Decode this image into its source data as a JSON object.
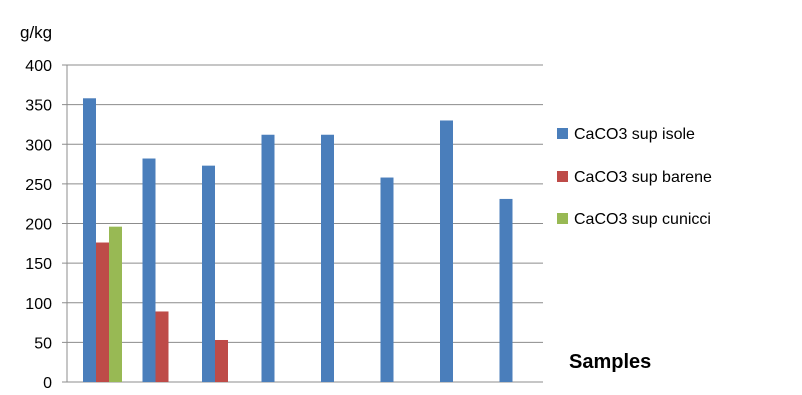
{
  "chart_data": {
    "type": "bar",
    "ylabel": "g/kg",
    "xlabel": "Samples",
    "ylim": [
      0,
      400
    ],
    "yticks": [
      0,
      50,
      100,
      150,
      200,
      250,
      300,
      350,
      400
    ],
    "grid": true,
    "legend_position": "right",
    "categories": [
      "",
      "",
      "",
      "",
      "",
      "",
      "",
      ""
    ],
    "series": [
      {
        "name": "CaCO3 sup isole",
        "color": "#4a7ebb",
        "values": [
          358,
          282,
          273,
          312,
          312,
          258,
          330,
          231
        ]
      },
      {
        "name": "CaCO3 sup barene",
        "color": "#be4b48",
        "values": [
          176,
          89,
          53,
          null,
          null,
          null,
          null,
          null
        ]
      },
      {
        "name": "CaCO3 sup cunicci",
        "color": "#98b954",
        "values": [
          196,
          null,
          null,
          null,
          null,
          null,
          null,
          null
        ]
      }
    ]
  }
}
